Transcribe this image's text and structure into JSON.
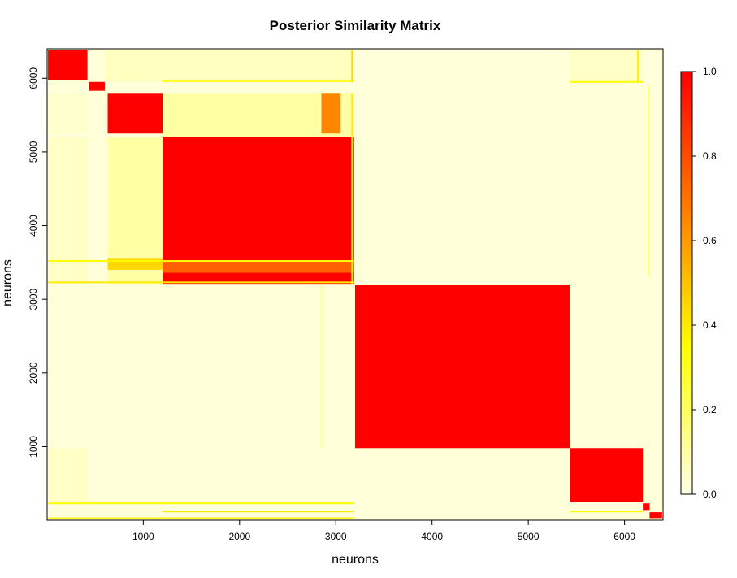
{
  "chart_data": {
    "type": "heatmap",
    "title": "Posterior Similarity Matrix",
    "xlabel": "neurons",
    "ylabel": "neurons",
    "xlim": [
      1,
      6400
    ],
    "ylim": [
      1,
      6400
    ],
    "x_ticks": [
      1000,
      2000,
      3000,
      4000,
      5000,
      6000
    ],
    "y_ticks": [
      1000,
      2000,
      3000,
      4000,
      5000,
      6000
    ],
    "colorbar": {
      "min": 0.0,
      "max": 1.0,
      "ticks": [
        "0.0",
        "0.2",
        "0.4",
        "0.6",
        "0.8",
        "1.0"
      ],
      "colors": [
        "#ffffe8",
        "#ffff00",
        "#ff9900",
        "#ff0000"
      ]
    },
    "background_value": 0.02,
    "blocks": [
      {
        "x": [
          10,
          420
        ],
        "y": [
          5970,
          6380
        ],
        "value": 1.0
      },
      {
        "x": [
          440,
          600
        ],
        "y": [
          5830,
          5950
        ],
        "value": 1.0
      },
      {
        "x": [
          630,
          1200
        ],
        "y": [
          5250,
          5790
        ],
        "value": 1.0
      },
      {
        "x": [
          1200,
          3190
        ],
        "y": [
          3210,
          5200
        ],
        "value": 1.0
      },
      {
        "x": [
          3200,
          5430
        ],
        "y": [
          980,
          3200
        ],
        "value": 1.0
      },
      {
        "x": [
          5430,
          6190
        ],
        "y": [
          250,
          980
        ],
        "value": 1.0
      },
      {
        "x": [
          6190,
          6260
        ],
        "y": [
          140,
          230
        ],
        "value": 1.0
      },
      {
        "x": [
          6260,
          6390
        ],
        "y": [
          30,
          110
        ],
        "value": 1.0
      },
      {
        "x": [
          1200,
          3190
        ],
        "y": [
          5200,
          5790
        ],
        "value": 0.1
      },
      {
        "x": [
          630,
          1200
        ],
        "y": [
          3210,
          5200
        ],
        "value": 0.1
      },
      {
        "x": [
          2850,
          3050
        ],
        "y": [
          5250,
          5790
        ],
        "value": 0.65
      },
      {
        "x": [
          630,
          1200
        ],
        "y": [
          3400,
          3560
        ],
        "value": 0.45
      },
      {
        "x": [
          1200,
          3190
        ],
        "y": [
          3360,
          3520
        ],
        "value": 0.75
      },
      {
        "x": [
          10,
          420
        ],
        "y": [
          3210,
          5200
        ],
        "value": 0.05
      },
      {
        "x": [
          10,
          420
        ],
        "y": [
          5250,
          5790
        ],
        "value": 0.04
      },
      {
        "x": [
          600,
          3190
        ],
        "y": [
          5950,
          6380
        ],
        "value": 0.06
      },
      {
        "x": [
          5430,
          6190
        ],
        "y": [
          5950,
          6380
        ],
        "value": 0.05
      },
      {
        "x": [
          10,
          420
        ],
        "y": [
          250,
          980
        ],
        "value": 0.05
      },
      {
        "x": [
          600,
          3190
        ],
        "y": [
          250,
          980
        ],
        "value": 0.02
      }
    ],
    "lines": [
      {
        "orientation": "h",
        "at": 5960,
        "x": [
          1200,
          3190
        ],
        "value": 0.3
      },
      {
        "orientation": "h",
        "at": 3520,
        "x": [
          10,
          3190
        ],
        "value": 0.35
      },
      {
        "orientation": "h",
        "at": 3230,
        "x": [
          10,
          3190
        ],
        "value": 0.4
      },
      {
        "orientation": "h",
        "at": 230,
        "x": [
          10,
          3190
        ],
        "value": 0.35
      },
      {
        "orientation": "h",
        "at": 120,
        "x": [
          1200,
          3190
        ],
        "value": 0.4
      },
      {
        "orientation": "h",
        "at": 30,
        "x": [
          10,
          3190
        ],
        "value": 0.3
      },
      {
        "orientation": "h",
        "at": 5950,
        "x": [
          5430,
          6190
        ],
        "value": 0.35
      },
      {
        "orientation": "h",
        "at": 120,
        "x": [
          5430,
          6190
        ],
        "value": 0.35
      },
      {
        "orientation": "v",
        "at": 3170,
        "y": [
          5950,
          6380
        ],
        "value": 0.45
      },
      {
        "orientation": "v",
        "at": 3170,
        "y": [
          3210,
          5790
        ],
        "value": 0.4
      },
      {
        "orientation": "v",
        "at": 6140,
        "y": [
          5950,
          6380
        ],
        "value": 0.4
      },
      {
        "orientation": "v",
        "at": 6250,
        "y": [
          3300,
          5900
        ],
        "value": 0.15
      },
      {
        "orientation": "v",
        "at": 2850,
        "y": [
          980,
          3200
        ],
        "value": 0.12
      }
    ]
  }
}
